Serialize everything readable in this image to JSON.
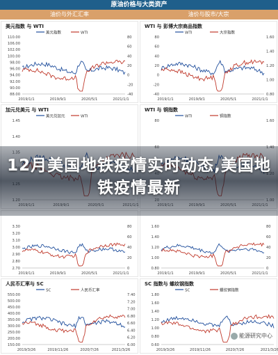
{
  "header": {
    "title": "原油价格与大类资产"
  },
  "columns": [
    "油价与外汇汇率",
    "油价与股市/大宗"
  ],
  "overlay": {
    "title": "12月美国地铁疫情实时动态,美国地铁疫情最新"
  },
  "watermark": "能源研究中心",
  "chart_data": [
    {
      "type": "line",
      "title": "美元指数 与 WTI",
      "series": [
        {
          "name": "美元指数"
        },
        {
          "name": "WTI"
        }
      ],
      "categories": [
        "2019/1/1",
        "2019/9/1",
        "2020/5/1",
        "2021/1/1"
      ],
      "y_ticks": [
        "110.00",
        "106.00",
        "102.00",
        "100.00",
        "98.00",
        "96.00",
        "94.00",
        "92.00",
        "90.00",
        "88.00"
      ],
      "y2_ticks": [
        "80",
        "60",
        "40",
        "20",
        "0",
        "-20",
        "-40"
      ],
      "legend": "top-center"
    },
    {
      "type": "line",
      "title": "WTI 与 彭博大宗商品指数",
      "series": [
        {
          "name": "WTI"
        },
        {
          "name": "大宗指数"
        }
      ],
      "categories": [
        "2019/1/1",
        "2019/9/1",
        "2020/5/1",
        "2021/1/1"
      ],
      "y_ticks": [
        "80",
        "60",
        "40",
        "20",
        "0",
        "-20",
        "-40"
      ],
      "y2_ticks": [
        "1.60",
        "1.40",
        "1.20",
        "1.00",
        "0.80"
      ],
      "legend": "top-center"
    },
    {
      "type": "line",
      "title": "加元兑美元 与 WTI",
      "series": [
        {
          "name": "美元兑加元"
        },
        {
          "name": "WTI"
        }
      ],
      "categories": [
        "2019/1/1",
        "2019/9/1",
        "2020/5/1",
        "2021/1/1"
      ],
      "y_ticks": [
        "1.45",
        "1.40",
        "1.35",
        "1.30",
        "1.25",
        "1.20"
      ],
      "legend": "top-center"
    },
    {
      "type": "line",
      "title": "WTI 与 铜指数",
      "series": [
        {
          "name": "WTI"
        },
        {
          "name": "铜指数"
        }
      ],
      "categories": [
        "2019/1/1",
        "2019/9/1",
        "2020/5/1",
        "2021/1/1"
      ],
      "y_ticks": [
        "80",
        "60",
        "40",
        "20"
      ],
      "y2_ticks": [
        "1.60",
        "1.40",
        "1.20",
        "1.00"
      ],
      "legend": "top-center"
    },
    {
      "type": "line",
      "title": "",
      "series": [
        {
          "name": ""
        },
        {
          "name": ""
        }
      ],
      "categories": [
        "2019/1/1",
        "2019/9/1",
        "2020/5/1",
        "2021/1/1"
      ],
      "y_ticks": [
        "3.30",
        "3.20",
        "3.10",
        "3.00",
        "2.90",
        "2.80",
        "2.70"
      ],
      "y2_ticks": [
        "80",
        "60",
        "40",
        "20",
        "0"
      ],
      "legend": "top-center"
    },
    {
      "type": "line",
      "title": "",
      "series": [
        {
          "name": ""
        },
        {
          "name": ""
        }
      ],
      "categories": [
        "2019/1/1",
        "2019/9/1",
        "2020/5/1",
        "2021/1/1"
      ],
      "y_ticks": [
        "1.60",
        "1.40",
        "1.20",
        "1.00",
        "0.80"
      ],
      "y2_ticks": [
        "80",
        "60",
        "40",
        "20",
        "0"
      ],
      "legend": "top-center"
    },
    {
      "type": "line",
      "title": "人民币汇率与 SC",
      "series": [
        {
          "name": "SC"
        },
        {
          "name": "人民币汇率"
        }
      ],
      "categories": [
        "2019/3/26",
        "2019/11/26",
        "2020/7/26",
        "2021/3/26"
      ],
      "y_ticks": [
        "550.00",
        "500.00",
        "450.00",
        "400.00",
        "350.00",
        "300.00",
        "250.00",
        "200.00",
        "150.00"
      ],
      "y2_ticks": [
        "7.40",
        "7.20",
        "7.00",
        "6.80",
        "6.60",
        "6.40",
        "6.20",
        "6.00"
      ],
      "legend": "top-center"
    },
    {
      "type": "line",
      "title": "SC 指数与 螺纹钢指数",
      "series": [
        {
          "name": "SC"
        },
        {
          "name": "螺纹钢指数"
        }
      ],
      "categories": [
        "2019/3/26",
        "2019/11/26",
        "2020/7/26",
        "2021/3/26"
      ],
      "y_ticks": [
        "1.80",
        "1.60",
        "1.40",
        "1.20",
        "1.00",
        "0.80",
        "0.60"
      ],
      "legend": "top-center"
    }
  ]
}
